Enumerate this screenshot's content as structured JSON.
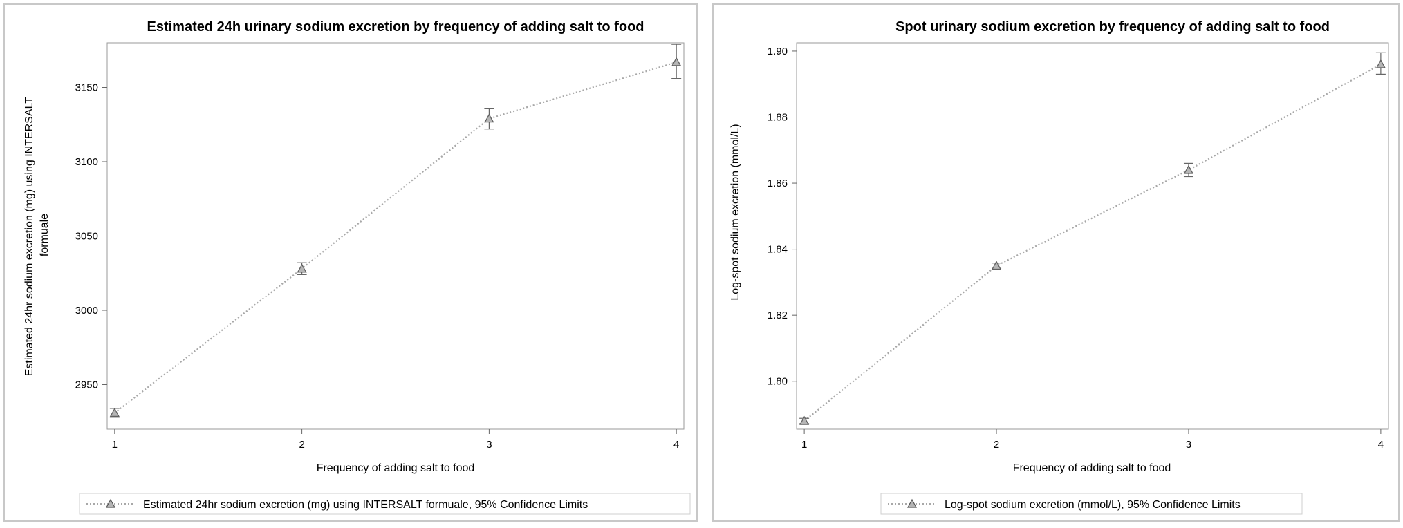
{
  "chart_data": [
    {
      "type": "line",
      "title": "Estimated 24h urinary sodium excretion by frequency of adding salt to food",
      "xlabel": "Frequency of adding salt to food",
      "ylabel": "Estimated 24hr sodium excretion (mg) using INTERSALT formuale",
      "x": [
        1,
        2,
        3,
        4
      ],
      "xticks": [
        "1",
        "2",
        "3",
        "4"
      ],
      "yticks": [
        "2950",
        "3000",
        "3050",
        "3100",
        "3150"
      ],
      "xlim": [
        0.96,
        4.04
      ],
      "ylim": [
        2920,
        3180
      ],
      "series": [
        {
          "name": "Estimated 24hr sodium excretion (mg) using INTERSALT formuale, 95% Confidence Limits",
          "values": [
            2931,
            3028,
            3129,
            3167
          ],
          "lower": [
            2928,
            3024,
            3122,
            3156
          ],
          "upper": [
            2934,
            3032,
            3136,
            3179
          ]
        }
      ],
      "legend_position": "bottom",
      "grid": false,
      "line_color": "#a8a8a8",
      "marker_color": "#606060"
    },
    {
      "type": "line",
      "title": "Spot urinary sodium excretion by frequency of adding salt to food",
      "xlabel": "Frequency of adding salt to food",
      "ylabel": "Log-spot sodium excretion (mmol/L)",
      "x": [
        1,
        2,
        3,
        4
      ],
      "xticks": [
        "1",
        "2",
        "3",
        "4"
      ],
      "yticks": [
        "1.80",
        "1.82",
        "1.84",
        "1.86",
        "1.88",
        "1.90"
      ],
      "xlim": [
        0.96,
        4.04
      ],
      "ylim": [
        1.7855,
        1.9025
      ],
      "series": [
        {
          "name": "Log-spot sodium excretion (mmol/L), 95% Confidence Limits",
          "values": [
            1.788,
            1.835,
            1.864,
            1.896
          ],
          "lower": [
            1.7872,
            1.8342,
            1.862,
            1.893
          ],
          "upper": [
            1.7888,
            1.8358,
            1.866,
            1.8995
          ]
        }
      ],
      "legend_position": "bottom",
      "grid": false,
      "line_color": "#a8a8a8",
      "marker_color": "#606060"
    }
  ]
}
